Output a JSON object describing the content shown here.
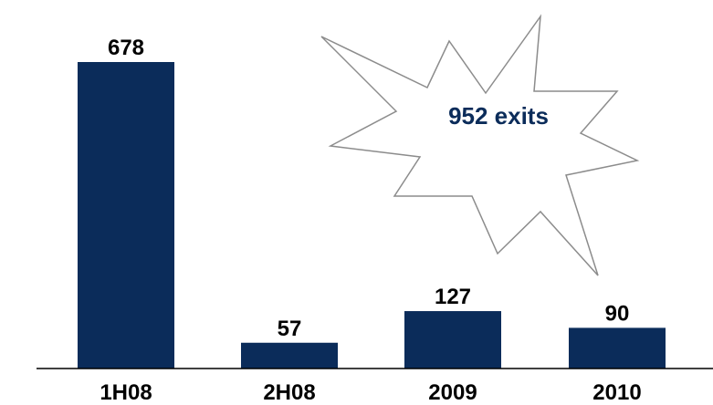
{
  "chart_data": {
    "type": "bar",
    "categories": [
      "1H08",
      "2H08",
      "2009",
      "2010"
    ],
    "values": [
      678,
      57,
      127,
      90
    ],
    "title": "",
    "xlabel": "",
    "ylabel": "",
    "ylim": [
      0,
      700
    ],
    "grid": false,
    "value_labels": [
      "678",
      "57",
      "127",
      "90"
    ],
    "bar_color": "#0b2c5a",
    "annotation": {
      "shape": "starburst",
      "text": "952 exits",
      "text_color": "#0b2c5a",
      "outline_color": "#8c8c8c"
    }
  }
}
